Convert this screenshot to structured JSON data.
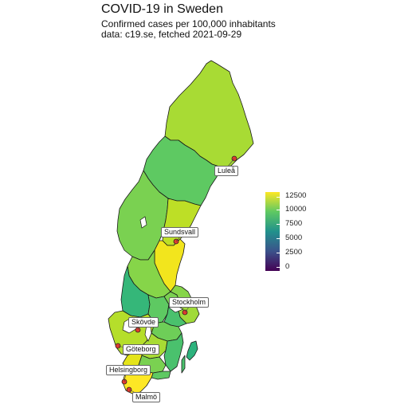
{
  "title": "COVID-19 in Sweden",
  "subtitle_line1": "Confirmed cases per 100,000 inhabitants",
  "subtitle_line2": "data: c19.se, fetched 2021-09-29",
  "legend": {
    "ticks": [
      "12500",
      "10000",
      "7500",
      "5000",
      "2500",
      "0"
    ],
    "min": 0,
    "max": 13500,
    "palette": [
      "#440154",
      "#3b528b",
      "#21918c",
      "#5ec962",
      "#fde725"
    ]
  },
  "cities": [
    {
      "name": "Luleå"
    },
    {
      "name": "Sundsvall"
    },
    {
      "name": "Stockholm"
    },
    {
      "name": "Skövde"
    },
    {
      "name": "Göteborg"
    },
    {
      "name": "Helsingborg"
    },
    {
      "name": "Malmö"
    }
  ],
  "colors": {
    "norrbotten": "#a8db34",
    "vasterbotten": "#5ec962",
    "jamtland": "#7ad151",
    "vasternorrland": "#bddf26",
    "gavleborg": "#f2e51d",
    "dalarna": "#86d549",
    "varmland": "#35b779",
    "orebro": "#5ec962",
    "vastmanland": "#7ad151",
    "uppsala": "#86d549",
    "stockholm": "#a0da39",
    "sodermanland": "#4ac16d",
    "ostergotland": "#6ece58",
    "vastra_gotaland": "#b5de2b",
    "jonkoping": "#a8db34",
    "kalmar": "#4ac16d",
    "kronoberg": "#7ad151",
    "halland": "#e4e419",
    "blekinge": "#5ec962",
    "skane": "#fde725",
    "gotland": "#2db27d"
  }
}
